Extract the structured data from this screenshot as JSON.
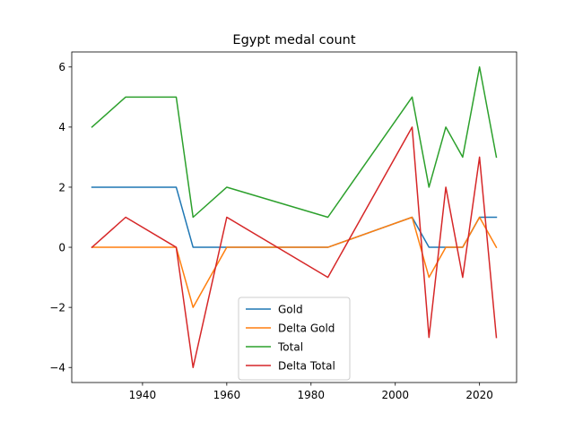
{
  "chart_data": {
    "type": "line",
    "title": "Egypt medal count",
    "xlabel": "",
    "ylabel": "",
    "xlim": [
      1923.2,
      2028.8
    ],
    "ylim": [
      -4.5,
      6.5
    ],
    "xticks": [
      1940,
      1960,
      1980,
      2000,
      2020
    ],
    "yticks": [
      -4,
      -2,
      0,
      2,
      4,
      6
    ],
    "grid": false,
    "legend_position": "lower-center",
    "x": [
      1928,
      1936,
      1948,
      1952,
      1960,
      1984,
      2004,
      2008,
      2012,
      2016,
      2020,
      2024
    ],
    "series": [
      {
        "name": "Gold",
        "color": "#1f77b4",
        "values": [
          2,
          2,
          2,
          0,
          0,
          0,
          1,
          0,
          0,
          0,
          1,
          1
        ]
      },
      {
        "name": "Delta Gold",
        "color": "#ff7f0e",
        "values": [
          0,
          0,
          0,
          -2,
          0,
          0,
          1,
          -1,
          0,
          0,
          1,
          0
        ]
      },
      {
        "name": "Total",
        "color": "#2ca02c",
        "values": [
          4,
          5,
          5,
          1,
          2,
          1,
          5,
          2,
          4,
          3,
          6,
          3
        ]
      },
      {
        "name": "Delta Total",
        "color": "#d62728",
        "values": [
          0,
          1,
          0,
          -4,
          1,
          -1,
          4,
          -3,
          2,
          -1,
          3,
          -3
        ]
      }
    ]
  }
}
